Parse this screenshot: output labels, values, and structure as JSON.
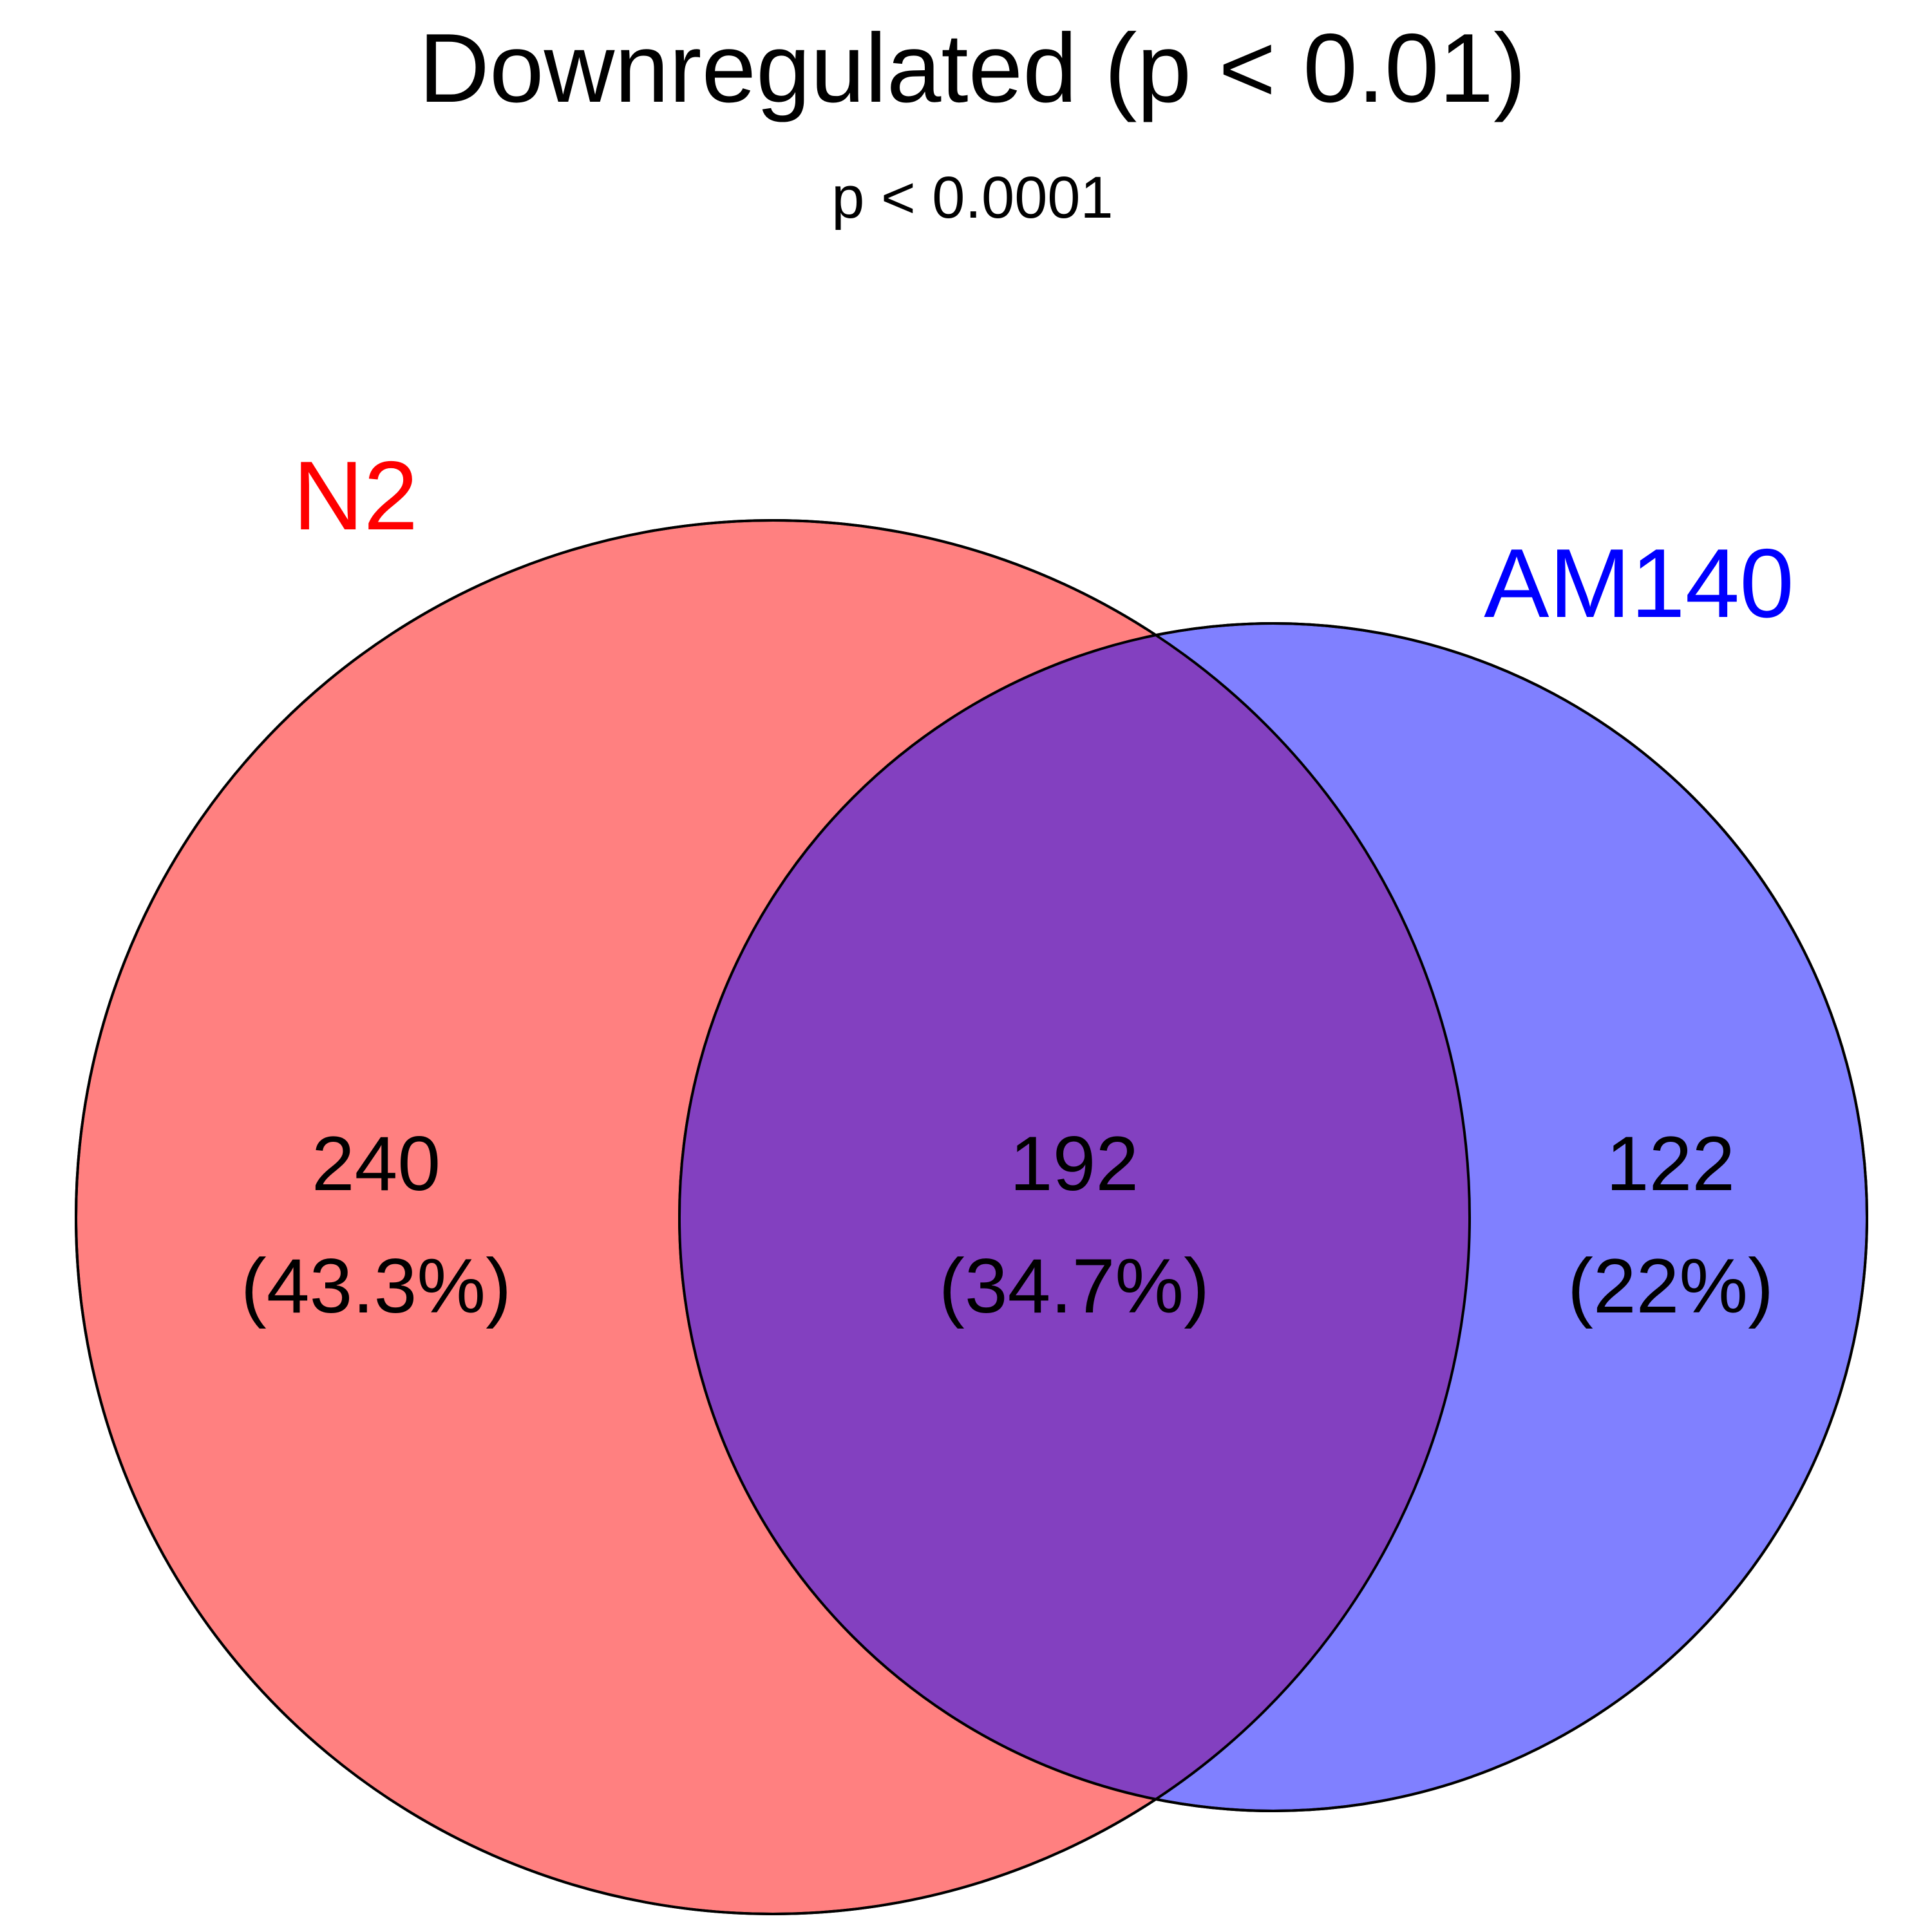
{
  "title": "Downregulated (p < 0.01)",
  "subtitle": "p < 0.0001",
  "sets": [
    {
      "name": "N2",
      "color": "#ff0000",
      "fill": "#ff8080"
    },
    {
      "name": "AM140",
      "color": "#0000ff",
      "fill": "#8080ff"
    }
  ],
  "overlap_fill": "#8340c0",
  "regions": {
    "n2_only": {
      "count": "240",
      "percent": "(43.3%)"
    },
    "both": {
      "count": "192",
      "percent": "(34.7%)"
    },
    "am140_only": {
      "count": "122",
      "percent": "(22%)"
    }
  },
  "chart_data": {
    "type": "venn",
    "title": "Downregulated (p < 0.01)",
    "subtitle": "p < 0.0001",
    "sets": [
      "N2",
      "AM140"
    ],
    "values": {
      "N2": 240,
      "N2&AM140": 192,
      "AM140": 122
    },
    "percentages": {
      "N2": 43.3,
      "N2&AM140": 34.7,
      "AM140": 22
    }
  }
}
